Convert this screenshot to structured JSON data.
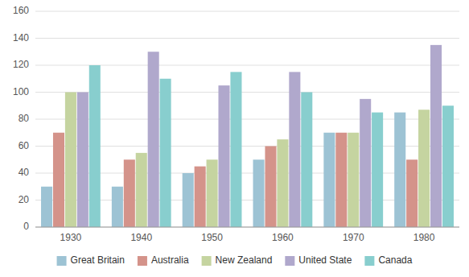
{
  "chart_data": {
    "type": "bar",
    "categories": [
      "1930",
      "1940",
      "1950",
      "1960",
      "1970",
      "1980"
    ],
    "series": [
      {
        "name": "Great Britain",
        "color": "#9dc3d4",
        "values": [
          30,
          30,
          40,
          50,
          70,
          85
        ]
      },
      {
        "name": "Australia",
        "color": "#d4938a",
        "values": [
          70,
          50,
          45,
          60,
          70,
          50
        ]
      },
      {
        "name": "New Zealand",
        "color": "#c5d4a0",
        "values": [
          100,
          55,
          50,
          65,
          70,
          87
        ]
      },
      {
        "name": "United State",
        "color": "#b0a8cc",
        "values": [
          100,
          130,
          105,
          115,
          95,
          135
        ]
      },
      {
        "name": "Canada",
        "color": "#88cece",
        "values": [
          120,
          110,
          115,
          100,
          85,
          90
        ]
      }
    ],
    "ylim": [
      0,
      160
    ],
    "yticks": [
      0,
      20,
      40,
      60,
      80,
      100,
      120,
      140,
      160
    ],
    "grid": true,
    "legend": "bottom"
  }
}
